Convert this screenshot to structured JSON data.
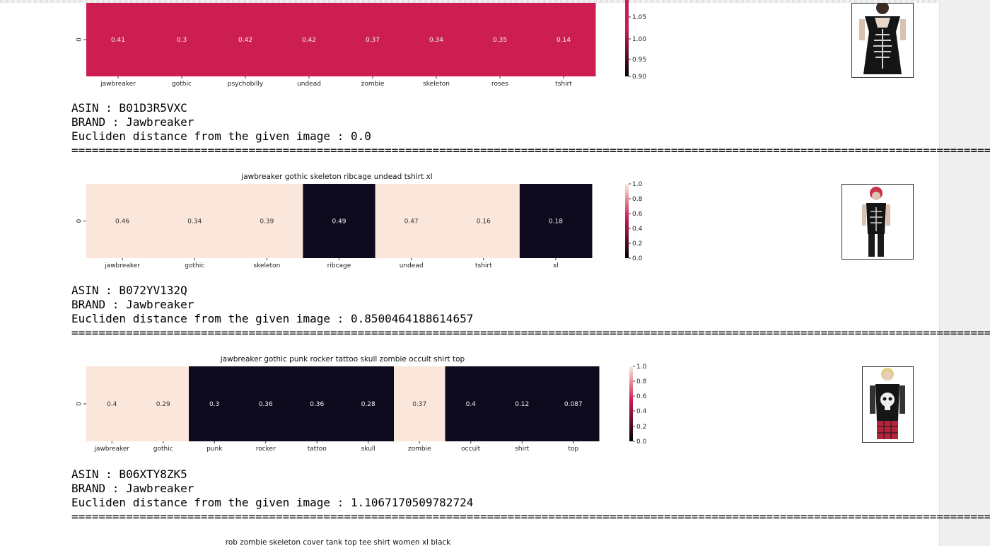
{
  "separator": "============================================================================================================================================================================",
  "y_tick_label": "0",
  "colors": {
    "crimson": "#cd1e52",
    "cream": "#fbe6dc",
    "navy": "#0c0a1c",
    "cbar_top": "#faebdf",
    "cbar_mid": "#cc1d52",
    "cbar_bottom": "#02010a"
  },
  "results": [
    {
      "title": "",
      "asin_line": "ASIN : B01D3R5VXC",
      "brand_line": "BRAND : Jawbreaker",
      "distance_line": "Eucliden distance from the given image : 0.0",
      "photo_icon": "dress-photo-icon",
      "colorbar_ticks": [
        "1.05",
        "1.00",
        "0.95",
        "0.90"
      ],
      "chart_data": {
        "type": "heatmap",
        "categories": [
          "jawbreaker",
          "gothic",
          "psychobilly",
          "undead",
          "zombie",
          "skeleton",
          "roses",
          "tshirt"
        ],
        "values": [
          0.41,
          0.3,
          0.42,
          0.42,
          0.37,
          0.34,
          0.35,
          0.14
        ],
        "value_labels": [
          "0.41",
          "0.3",
          "0.42",
          "0.42",
          "0.37",
          "0.34",
          "0.35",
          "0.14"
        ],
        "cell_colors": [
          1,
          1,
          1,
          1,
          1,
          1,
          1,
          1
        ],
        "colorbar_range": [
          0.9,
          1.1
        ]
      }
    },
    {
      "title": "jawbreaker gothic skeleton ribcage undead tshirt xl",
      "asin_line": "ASIN : B072YV132Q",
      "brand_line": "BRAND : Jawbreaker",
      "distance_line": "Eucliden distance from the given image : 0.8500464188614657",
      "photo_icon": "ribcage-shirt-photo-icon",
      "colorbar_ticks": [
        "1.0",
        "0.8",
        "0.6",
        "0.4",
        "0.2",
        "0.0"
      ],
      "chart_data": {
        "type": "heatmap",
        "categories": [
          "jawbreaker",
          "gothic",
          "skeleton",
          "ribcage",
          "undead",
          "tshirt",
          "xl"
        ],
        "values": [
          0.46,
          0.34,
          0.39,
          0.49,
          0.47,
          0.16,
          0.18
        ],
        "value_labels": [
          "0.46",
          "0.34",
          "0.39",
          "0.49",
          "0.47",
          "0.16",
          "0.18"
        ],
        "cell_colors": [
          1,
          1,
          1,
          0,
          1,
          1,
          0
        ],
        "colorbar_range": [
          0,
          1
        ]
      }
    },
    {
      "title": "jawbreaker gothic punk rocker tattoo skull zombie occult shirt top",
      "asin_line": "ASIN : B06XTY8ZK5",
      "brand_line": "BRAND : Jawbreaker",
      "distance_line": "Eucliden distance from the given image : 1.1067170509782724",
      "photo_icon": "skull-shirt-photo-icon",
      "colorbar_ticks": [
        "1.0",
        "0.8",
        "0.6",
        "0.4",
        "0.2",
        "0.0"
      ],
      "chart_data": {
        "type": "heatmap",
        "categories": [
          "jawbreaker",
          "gothic",
          "punk",
          "rocker",
          "tattoo",
          "skull",
          "zombie",
          "occult",
          "shirt",
          "top"
        ],
        "values": [
          0.4,
          0.29,
          0.3,
          0.36,
          0.36,
          0.28,
          0.37,
          0.4,
          0.12,
          0.087
        ],
        "value_labels": [
          "0.4",
          "0.29",
          "0.3",
          "0.36",
          "0.36",
          "0.28",
          "0.37",
          "0.4",
          "0.12",
          "0.087"
        ],
        "cell_colors": [
          1,
          1,
          0,
          0,
          0,
          0,
          1,
          0,
          0,
          0
        ],
        "colorbar_range": [
          0,
          1
        ]
      }
    }
  ],
  "next_title": "rob zombie skeleton cover tank top tee shirt women xl black"
}
